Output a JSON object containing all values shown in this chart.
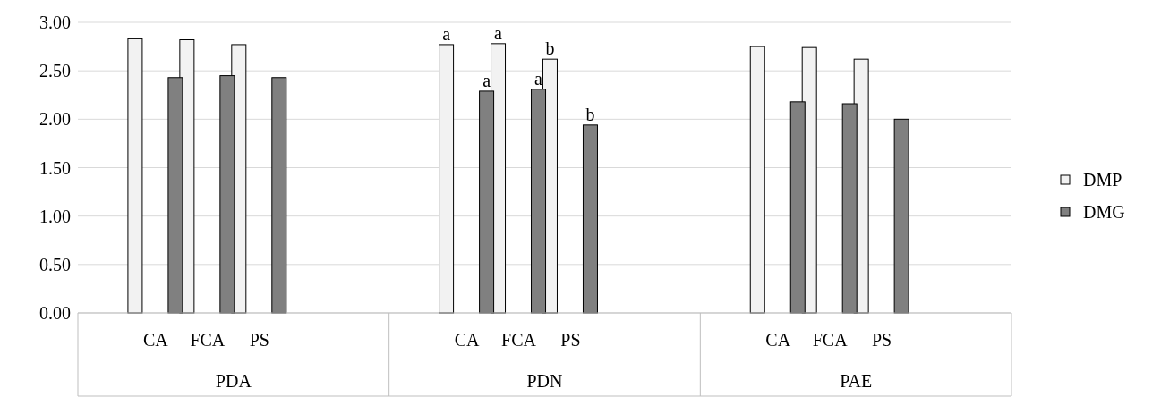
{
  "chart_data": {
    "type": "bar",
    "categories": [
      null,
      "CA",
      "FCA",
      "PS",
      null,
      null,
      null,
      "CA",
      "FCA",
      "PS",
      null,
      null,
      null,
      "CA",
      "FCA",
      "PS",
      null,
      null
    ],
    "annotations": [
      "PDA",
      "PDN",
      "PAE"
    ],
    "series": [
      {
        "name": "DMP",
        "color": "#f2f2f2",
        "values": [
          null,
          2.83,
          2.82,
          2.77,
          null,
          null,
          null,
          2.77,
          2.78,
          2.62,
          null,
          null,
          null,
          2.75,
          2.74,
          2.62,
          null,
          null
        ],
        "value_labels": [
          null,
          null,
          null,
          null,
          null,
          null,
          null,
          "a",
          "a",
          "b",
          null,
          null,
          null,
          null,
          null,
          null,
          null,
          null
        ]
      },
      {
        "name": "DMG",
        "color": "#808080",
        "values": [
          null,
          2.43,
          2.45,
          2.43,
          null,
          null,
          null,
          2.29,
          2.31,
          1.94,
          null,
          null,
          null,
          2.18,
          2.16,
          2.0,
          null,
          null
        ],
        "value_labels": [
          null,
          null,
          null,
          null,
          null,
          null,
          null,
          "a",
          "a",
          "b",
          null,
          null,
          null,
          null,
          null,
          null,
          null,
          null
        ]
      }
    ],
    "ylim": [
      0,
      3
    ],
    "yticks": [
      {
        "value": 0,
        "label": "0.00"
      },
      {
        "value": 0.5,
        "label": "0.50"
      },
      {
        "value": 1,
        "label": "1.00"
      },
      {
        "value": 1.5,
        "label": "1.50"
      },
      {
        "value": 2,
        "label": "2.00"
      },
      {
        "value": 2.5,
        "label": "2.50"
      },
      {
        "value": 3,
        "label": "3.00"
      }
    ],
    "grid": "y",
    "legend": "right",
    "marker": "square"
  }
}
